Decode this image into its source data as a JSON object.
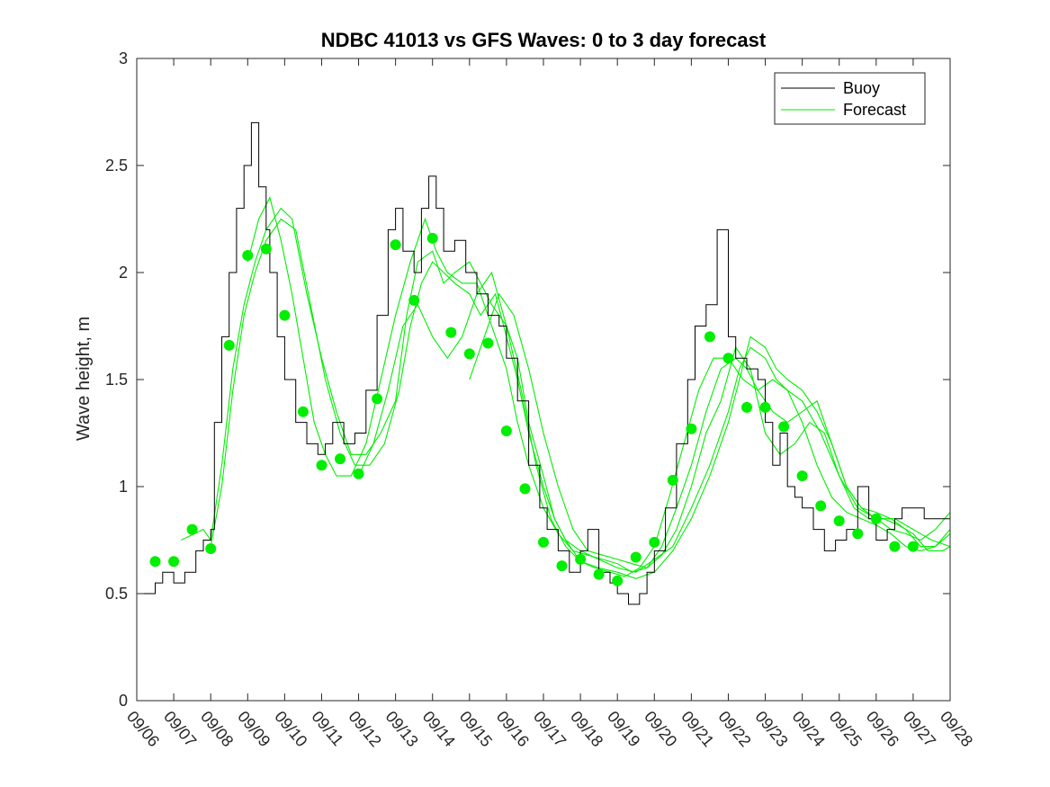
{
  "chart_data": {
    "type": "line",
    "title": "NDBC 41013 vs GFS Waves: 0 to 3 day forecast",
    "xlabel": "",
    "ylabel": "Wave height, m",
    "xlim": [
      0,
      22
    ],
    "ylim": [
      0,
      3
    ],
    "x_tick_labels": [
      "09/06",
      "09/07",
      "09/08",
      "09/09",
      "09/10",
      "09/11",
      "09/12",
      "09/13",
      "09/14",
      "09/15",
      "09/16",
      "09/17",
      "09/18",
      "09/19",
      "09/20",
      "09/21",
      "09/22",
      "09/23",
      "09/24",
      "09/25",
      "09/26",
      "09/27",
      "09/28"
    ],
    "y_tick_labels": [
      "0",
      "0.5",
      "1",
      "1.5",
      "2",
      "2.5",
      "3"
    ],
    "y_ticks": [
      0,
      0.5,
      1,
      1.5,
      2,
      2.5,
      3
    ],
    "grid": false,
    "legend": {
      "placement": "top-right",
      "entries": [
        "Buoy",
        "Forecast"
      ]
    },
    "colors": {
      "buoy": "#000000",
      "forecast": "#00ee00",
      "markers": "#00ee00"
    },
    "buoy": {
      "name": "Buoy",
      "x": [
        0,
        0.5,
        0.7,
        1.0,
        1.3,
        1.6,
        1.8,
        2.0,
        2.1,
        2.3,
        2.5,
        2.7,
        2.9,
        3.1,
        3.3,
        3.5,
        3.6,
        3.8,
        4.0,
        4.3,
        4.6,
        4.9,
        5.1,
        5.3,
        5.6,
        5.9,
        6.2,
        6.5,
        6.8,
        7.0,
        7.2,
        7.5,
        7.7,
        7.9,
        8.1,
        8.3,
        8.6,
        8.9,
        9.2,
        9.5,
        9.8,
        10.0,
        10.3,
        10.6,
        10.9,
        11.1,
        11.4,
        11.7,
        12.0,
        12.2,
        12.5,
        12.8,
        13.0,
        13.3,
        13.6,
        13.8,
        14.0,
        14.3,
        14.6,
        14.9,
        15.1,
        15.4,
        15.7,
        16.0,
        16.2,
        16.5,
        16.8,
        17.0,
        17.2,
        17.4,
        17.6,
        17.8,
        18.0,
        18.3,
        18.6,
        18.9,
        19.2,
        19.5,
        19.8,
        20.0,
        20.3,
        20.5,
        20.7,
        21.0,
        21.3,
        21.6,
        22.0
      ],
      "values": [
        0.5,
        0.55,
        0.6,
        0.55,
        0.6,
        0.7,
        0.75,
        0.8,
        1.3,
        1.7,
        2.0,
        2.3,
        2.5,
        2.7,
        2.4,
        2.2,
        2.0,
        1.7,
        1.5,
        1.3,
        1.2,
        1.15,
        1.2,
        1.3,
        1.2,
        1.25,
        1.45,
        1.8,
        2.2,
        2.3,
        2.1,
        2.0,
        2.3,
        2.45,
        2.3,
        2.1,
        2.15,
        2.0,
        1.9,
        1.8,
        1.75,
        1.6,
        1.4,
        1.1,
        0.9,
        0.8,
        0.7,
        0.6,
        0.7,
        0.8,
        0.6,
        0.55,
        0.5,
        0.45,
        0.5,
        0.6,
        0.7,
        0.9,
        1.2,
        1.5,
        1.75,
        1.85,
        2.2,
        1.7,
        1.6,
        1.55,
        1.5,
        1.3,
        1.1,
        1.25,
        1.0,
        0.95,
        0.9,
        0.8,
        0.7,
        0.75,
        0.8,
        1.0,
        0.85,
        0.75,
        0.8,
        0.85,
        0.9,
        0.9,
        0.85,
        0.85,
        0.85
      ]
    },
    "forecast_series": [
      {
        "name": "Forecast 1",
        "x": [
          1.2,
          1.8,
          2.0,
          2.3,
          2.6,
          2.9,
          3.2,
          3.5,
          3.9,
          4.2,
          4.6,
          5.0,
          5.4,
          5.8,
          6.2,
          6.6,
          7.0,
          7.3,
          7.6,
          8.0,
          8.3,
          8.6,
          9.0,
          9.3,
          9.6,
          10.0,
          10.3,
          10.6,
          11.0,
          11.3,
          11.6,
          12.0,
          12.5,
          13.0,
          13.5,
          14.0,
          14.5,
          15.0,
          15.5,
          16.0,
          16.3,
          16.6,
          17.0,
          17.3,
          17.6,
          18.0,
          18.5,
          19.0,
          19.5,
          20.0,
          20.5,
          21.0,
          21.5,
          22.0
        ],
        "values": [
          0.75,
          0.8,
          0.75,
          1.1,
          1.55,
          1.85,
          2.05,
          2.2,
          2.3,
          2.25,
          1.9,
          1.6,
          1.35,
          1.15,
          1.15,
          1.25,
          1.4,
          1.8,
          2.05,
          2.1,
          1.95,
          2.0,
          2.05,
          1.95,
          1.85,
          1.75,
          1.6,
          1.3,
          1.05,
          0.85,
          0.75,
          0.7,
          0.66,
          0.62,
          0.6,
          0.66,
          0.72,
          0.9,
          1.1,
          1.35,
          1.55,
          1.65,
          1.6,
          1.5,
          1.45,
          1.4,
          1.25,
          1.05,
          0.9,
          0.85,
          0.85,
          0.8,
          0.75,
          0.72
        ]
      },
      {
        "name": "Forecast 2",
        "x": [
          2.0,
          2.3,
          2.6,
          2.9,
          3.2,
          3.5,
          3.9,
          4.3,
          4.7,
          5.1,
          5.5,
          5.9,
          6.3,
          6.7,
          7.1,
          7.4,
          7.7,
          8.0,
          8.3,
          8.6,
          9.0,
          9.3,
          9.7,
          10.0,
          10.3,
          10.6,
          11.0,
          11.3,
          11.6,
          12.0,
          12.5,
          13.0,
          13.5,
          14.0,
          14.5,
          15.0,
          15.5,
          16.0,
          16.3,
          16.6,
          17.0,
          17.3,
          17.6,
          18.0,
          18.4,
          18.8,
          19.2,
          19.6,
          20.0,
          20.4,
          20.8,
          21.2,
          21.6,
          22.0
        ],
        "values": [
          0.72,
          1.0,
          1.45,
          1.8,
          2.0,
          2.15,
          2.25,
          2.2,
          1.85,
          1.5,
          1.25,
          1.1,
          1.1,
          1.2,
          1.45,
          1.75,
          1.95,
          2.05,
          2.0,
          1.95,
          1.9,
          1.8,
          1.9,
          1.7,
          1.5,
          1.25,
          1.0,
          0.85,
          0.75,
          0.65,
          0.62,
          0.6,
          0.57,
          0.6,
          0.7,
          0.85,
          1.05,
          1.3,
          1.5,
          1.7,
          1.65,
          1.55,
          1.5,
          1.45,
          1.35,
          1.2,
          1.0,
          0.9,
          0.85,
          0.8,
          0.78,
          0.75,
          0.8,
          0.88
        ]
      },
      {
        "name": "Forecast 3",
        "x": [
          3.0,
          3.3,
          3.6,
          3.9,
          4.2,
          4.5,
          4.8,
          5.1,
          5.4,
          5.8,
          6.2,
          6.6,
          7.0,
          7.4,
          7.8,
          8.1,
          8.4,
          8.8,
          9.2,
          9.6,
          10.0,
          10.3,
          10.6,
          11.0,
          11.4,
          11.8,
          12.2,
          12.6,
          13.0,
          13.4,
          13.8,
          14.2,
          14.6,
          15.0,
          15.4,
          15.8,
          16.2,
          16.5,
          16.8,
          17.2,
          17.6,
          18.0,
          18.4,
          18.8,
          19.2,
          19.6,
          20.0,
          20.4,
          20.8,
          21.2,
          21.6,
          22.0
        ],
        "values": [
          2.05,
          2.25,
          2.35,
          2.15,
          1.9,
          1.6,
          1.3,
          1.15,
          1.05,
          1.05,
          1.2,
          1.5,
          1.8,
          2.05,
          2.25,
          2.1,
          2.0,
          1.95,
          1.95,
          1.75,
          1.55,
          1.3,
          1.1,
          0.9,
          0.78,
          0.7,
          0.68,
          0.66,
          0.64,
          0.6,
          0.62,
          0.72,
          0.9,
          1.1,
          1.35,
          1.55,
          1.6,
          1.55,
          1.45,
          1.35,
          1.3,
          1.35,
          1.4,
          1.2,
          1.0,
          0.9,
          0.88,
          0.85,
          0.8,
          0.72,
          0.72,
          0.8
        ]
      },
      {
        "name": "Forecast 4",
        "x": [
          6.0,
          6.4,
          6.8,
          7.2,
          7.6,
          8.0,
          8.4,
          8.8,
          9.2,
          9.6,
          10.0,
          10.4,
          10.8,
          11.2,
          11.6,
          12.0,
          12.4,
          12.8,
          13.2,
          13.6,
          14.0,
          14.4,
          14.8,
          15.2,
          15.6,
          16.0,
          16.4,
          16.8,
          17.2,
          17.6,
          18.0,
          18.4,
          18.8,
          19.2,
          19.6,
          20.0,
          20.4,
          20.8,
          21.2,
          21.6,
          22.0
        ],
        "values": [
          1.05,
          1.2,
          1.45,
          1.75,
          1.85,
          1.7,
          1.6,
          1.7,
          1.9,
          2.0,
          1.75,
          1.45,
          1.1,
          0.85,
          0.72,
          0.65,
          0.62,
          0.6,
          0.58,
          0.62,
          0.72,
          0.95,
          1.2,
          1.45,
          1.6,
          1.6,
          1.5,
          1.45,
          1.5,
          1.45,
          1.3,
          1.1,
          0.95,
          0.88,
          0.85,
          0.82,
          0.78,
          0.72,
          0.7,
          0.72,
          0.78
        ]
      },
      {
        "name": "Forecast 5",
        "x": [
          9.0,
          9.4,
          9.8,
          10.2,
          10.6,
          11.0,
          11.4,
          11.8,
          12.2,
          12.6,
          13.0,
          13.4,
          13.8,
          14.2,
          14.6,
          15.0,
          15.4,
          15.8,
          16.2,
          16.6,
          17.0,
          17.4,
          17.8,
          18.2,
          18.6,
          19.0,
          19.4,
          19.8,
          20.2,
          20.6,
          21.0,
          21.4,
          21.8,
          22.0
        ],
        "values": [
          1.5,
          1.7,
          1.9,
          1.8,
          1.55,
          1.25,
          1.0,
          0.8,
          0.7,
          0.68,
          0.66,
          0.64,
          0.62,
          0.68,
          0.8,
          1.0,
          1.25,
          1.4,
          1.65,
          1.55,
          1.25,
          1.15,
          1.2,
          1.3,
          1.25,
          1.05,
          0.9,
          0.85,
          0.85,
          0.82,
          0.78,
          0.7,
          0.7,
          0.72
        ]
      }
    ],
    "forecast_markers": {
      "name": "Forecast",
      "x": [
        0.5,
        1.0,
        1.5,
        2.0,
        2.5,
        3.0,
        3.5,
        4.0,
        4.5,
        5.0,
        5.5,
        6.0,
        6.5,
        7.0,
        7.5,
        8.0,
        8.5,
        9.0,
        9.5,
        10.0,
        10.5,
        11.0,
        11.5,
        12.0,
        12.5,
        13.0,
        13.5,
        14.0,
        14.5,
        15.0,
        15.5,
        16.0,
        16.5,
        17.0,
        17.5,
        18.0,
        18.5,
        19.0,
        19.5,
        20.0,
        20.5,
        21.0
      ],
      "values": [
        0.65,
        0.65,
        0.8,
        0.71,
        1.66,
        2.08,
        2.11,
        1.8,
        1.35,
        1.1,
        1.13,
        1.06,
        1.41,
        2.13,
        1.87,
        2.16,
        1.72,
        1.62,
        1.67,
        1.26,
        0.99,
        0.74,
        0.63,
        0.66,
        0.59,
        0.56,
        0.67,
        0.74,
        1.03,
        1.27,
        1.7,
        1.6,
        1.37,
        1.37,
        1.28,
        1.05,
        0.91,
        0.84,
        0.78,
        0.85,
        0.72,
        0.72
      ]
    }
  }
}
